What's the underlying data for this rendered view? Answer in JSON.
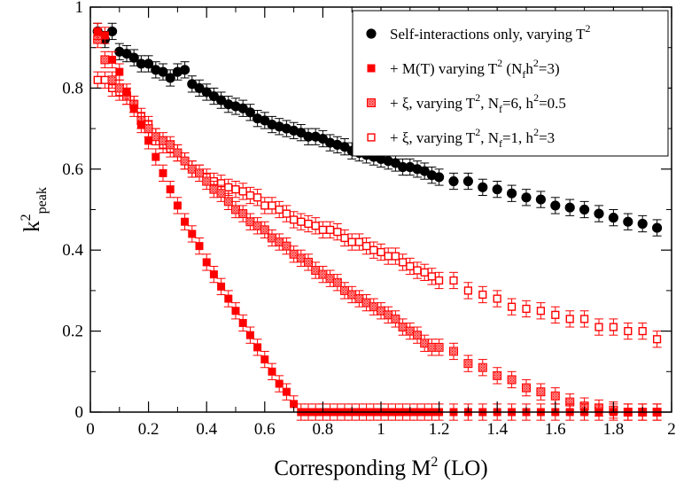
{
  "chart_data": {
    "type": "scatter",
    "xlabel": "Corresponding M",
    "xlabel_sup": "2",
    "xlabel_suffix": " (LO)",
    "ylabel": "k",
    "ylabel_sup": "2",
    "ylabel_sub": "peak",
    "xlim": [
      0,
      2
    ],
    "ylim": [
      0,
      1
    ],
    "xticks": [
      "0",
      "0.2",
      "0.4",
      "0.6",
      "0.8",
      "1",
      "1.2",
      "1.4",
      "1.6",
      "1.8",
      "2"
    ],
    "yticks": [
      "0",
      "0.2",
      "0.4",
      "0.6",
      "0.8",
      "1"
    ],
    "grid": false,
    "legend_position": "top-right",
    "series": [
      {
        "name": "Self-interactions only, varying T²",
        "legend": {
          "text": "Self-interactions only, varying T",
          "sup": "2"
        },
        "marker": "circle-filled",
        "color": "#000000",
        "x": [
          0.025,
          0.05,
          0.075,
          0.1,
          0.125,
          0.15,
          0.175,
          0.2,
          0.225,
          0.25,
          0.275,
          0.3,
          0.325,
          0.35,
          0.375,
          0.4,
          0.425,
          0.45,
          0.475,
          0.5,
          0.525,
          0.55,
          0.575,
          0.6,
          0.625,
          0.65,
          0.675,
          0.7,
          0.725,
          0.75,
          0.775,
          0.8,
          0.825,
          0.85,
          0.875,
          0.9,
          0.925,
          0.95,
          0.975,
          1.0,
          1.025,
          1.05,
          1.075,
          1.1,
          1.125,
          1.15,
          1.175,
          1.2,
          1.25,
          1.3,
          1.35,
          1.4,
          1.45,
          1.5,
          1.55,
          1.6,
          1.65,
          1.7,
          1.75,
          1.8,
          1.85,
          1.9,
          1.95
        ],
        "y": [
          0.94,
          0.92,
          0.94,
          0.89,
          0.885,
          0.875,
          0.86,
          0.86,
          0.845,
          0.84,
          0.825,
          0.84,
          0.845,
          0.81,
          0.8,
          0.79,
          0.78,
          0.77,
          0.76,
          0.755,
          0.75,
          0.74,
          0.725,
          0.72,
          0.71,
          0.705,
          0.7,
          0.695,
          0.69,
          0.68,
          0.68,
          0.675,
          0.665,
          0.66,
          0.655,
          0.645,
          0.64,
          0.635,
          0.63,
          0.625,
          0.62,
          0.615,
          0.605,
          0.605,
          0.6,
          0.595,
          0.585,
          0.58,
          0.57,
          0.57,
          0.555,
          0.55,
          0.54,
          0.53,
          0.525,
          0.51,
          0.505,
          0.5,
          0.49,
          0.48,
          0.47,
          0.465,
          0.455
        ],
        "err": 0.02
      },
      {
        "name": "+ M(T) varying T² (Nfh²=3)",
        "legend": {
          "text": "+ M(T) varying T",
          "sup": "2",
          "text2": " (N",
          "sub": "f",
          "text3": "h",
          "sup2": "2",
          "text4": "=3)"
        },
        "marker": "square-filled",
        "color": "#ff0000",
        "x": [
          0.025,
          0.05,
          0.075,
          0.1,
          0.125,
          0.15,
          0.175,
          0.2,
          0.225,
          0.25,
          0.275,
          0.3,
          0.325,
          0.35,
          0.375,
          0.4,
          0.425,
          0.45,
          0.475,
          0.5,
          0.525,
          0.55,
          0.575,
          0.6,
          0.625,
          0.65,
          0.675,
          0.7,
          0.725,
          0.75,
          0.775,
          0.8,
          0.825,
          0.85,
          0.875,
          0.9,
          0.925,
          0.95,
          0.975,
          1.0,
          1.025,
          1.05,
          1.075,
          1.1,
          1.125,
          1.15,
          1.175,
          1.2,
          1.25,
          1.3,
          1.35,
          1.4,
          1.45,
          1.5,
          1.55,
          1.6,
          1.65,
          1.7,
          1.75,
          1.8,
          1.85,
          1.9,
          1.95
        ],
        "y": [
          0.94,
          0.85,
          0.81,
          0.77,
          0.72,
          0.69,
          0.65,
          0.59,
          0.55,
          0.51,
          0.47,
          0.44,
          0.4,
          0.37,
          0.34,
          0.31,
          0.27,
          0.24,
          0.21,
          0.18,
          0.15,
          0.12,
          0.09,
          0.06,
          0.03,
          0.01,
          0.0,
          0.0,
          0.0,
          0.0,
          0.0,
          0.0,
          0.0,
          0.0,
          0.0,
          0.0,
          0.0,
          0.0,
          0.0,
          0.0,
          0.0,
          0.0,
          0.0,
          0.0,
          0.0,
          0.0,
          0.0,
          0.0,
          0.0,
          0.0,
          0.0,
          0.0,
          0.0,
          0.0,
          0.0,
          0.0,
          0.0,
          0.0,
          0.0,
          0.0,
          0.0,
          0.0,
          0.0
        ],
        "x_override": [
          0.025,
          0.05,
          0.075,
          0.1,
          0.125,
          0.15,
          0.175,
          0.2,
          0.225,
          0.25,
          0.275,
          0.3,
          0.325,
          0.35,
          0.375,
          0.4,
          0.425,
          0.45,
          0.475,
          0.5,
          0.525,
          0.55,
          0.575,
          0.6,
          0.625,
          0.65,
          0.675,
          0.7,
          0.725,
          0.75,
          0.775,
          0.8,
          0.825,
          0.85,
          0.875,
          0.9,
          0.925,
          0.95,
          0.975,
          1.0,
          1.025,
          1.05,
          1.075,
          1.1,
          1.125,
          1.15,
          1.175,
          1.2,
          1.25,
          1.3,
          1.35,
          1.4,
          1.45,
          1.5,
          1.55,
          1.6,
          1.65,
          1.7,
          1.75,
          1.8,
          1.85,
          1.9,
          1.95
        ],
        "y_override": [
          0.94,
          0.93,
          0.87,
          0.84,
          0.79,
          0.75,
          0.71,
          0.67,
          0.63,
          0.59,
          0.55,
          0.51,
          0.47,
          0.44,
          0.41,
          0.37,
          0.34,
          0.31,
          0.28,
          0.25,
          0.22,
          0.19,
          0.16,
          0.13,
          0.1,
          0.07,
          0.05,
          0.02,
          0.0,
          0.0,
          0.0,
          0.0,
          0.0,
          0.0,
          0.0,
          0.0,
          0.0,
          0.0,
          0.0,
          0.0,
          0.0,
          0.0,
          0.0,
          0.0,
          0.0,
          0.0,
          0.0,
          0.0,
          0.0,
          0.0,
          0.0,
          0.0,
          0.0,
          0.0,
          0.0,
          0.0,
          0.0,
          0.0,
          0.0,
          0.0,
          0.0,
          0.0,
          0.0
        ],
        "err": 0.02
      },
      {
        "name": "+ ξ, varying T², Nf=6, h²=0.5",
        "legend": {
          "text": "+ ξ, varying T",
          "sup": "2",
          "text2": ", N",
          "sub": "f",
          "text3": "=6, h",
          "sup2": "2",
          "text4": "=0.5"
        },
        "marker": "square-hatched",
        "color": "#ff0000",
        "x": [
          0.025,
          0.05,
          0.075,
          0.1,
          0.125,
          0.15,
          0.175,
          0.2,
          0.225,
          0.25,
          0.275,
          0.3,
          0.325,
          0.35,
          0.375,
          0.4,
          0.425,
          0.45,
          0.475,
          0.5,
          0.525,
          0.55,
          0.575,
          0.6,
          0.625,
          0.65,
          0.675,
          0.7,
          0.725,
          0.75,
          0.775,
          0.8,
          0.825,
          0.85,
          0.875,
          0.9,
          0.925,
          0.95,
          0.975,
          1.0,
          1.025,
          1.05,
          1.075,
          1.1,
          1.125,
          1.15,
          1.175,
          1.2,
          1.25,
          1.3,
          1.35,
          1.4,
          1.45,
          1.5,
          1.55,
          1.6,
          1.65,
          1.7,
          1.75,
          1.8,
          1.85,
          1.9,
          1.95
        ],
        "y": [
          0.92,
          0.87,
          0.82,
          0.8,
          0.78,
          0.76,
          0.72,
          0.7,
          0.68,
          0.67,
          0.66,
          0.64,
          0.62,
          0.6,
          0.59,
          0.57,
          0.55,
          0.54,
          0.52,
          0.5,
          0.49,
          0.47,
          0.46,
          0.45,
          0.43,
          0.42,
          0.41,
          0.39,
          0.38,
          0.37,
          0.35,
          0.34,
          0.33,
          0.32,
          0.3,
          0.29,
          0.28,
          0.27,
          0.26,
          0.25,
          0.24,
          0.23,
          0.21,
          0.2,
          0.19,
          0.17,
          0.16,
          0.16,
          0.15,
          0.12,
          0.11,
          0.09,
          0.08,
          0.06,
          0.05,
          0.04,
          0.025,
          0.015,
          0.01,
          0.005,
          0.0,
          0.0,
          0.0
        ],
        "err": 0.02
      },
      {
        "name": "+ ξ, varying T², Nf=1, h²=3",
        "legend": {
          "text": "+ ξ, varying T",
          "sup": "2",
          "text2": ", N",
          "sub": "f",
          "text3": "=1, h",
          "sup2": "2",
          "text4": "=3"
        },
        "marker": "square-open",
        "color": "#ff0000",
        "x": [
          0.025,
          0.05,
          0.075,
          0.1,
          0.125,
          0.15,
          0.175,
          0.2,
          0.225,
          0.25,
          0.275,
          0.3,
          0.325,
          0.35,
          0.375,
          0.4,
          0.425,
          0.45,
          0.475,
          0.5,
          0.525,
          0.55,
          0.575,
          0.6,
          0.625,
          0.65,
          0.675,
          0.7,
          0.725,
          0.75,
          0.775,
          0.8,
          0.825,
          0.85,
          0.875,
          0.9,
          0.925,
          0.95,
          0.975,
          1.0,
          1.025,
          1.05,
          1.075,
          1.1,
          1.125,
          1.15,
          1.175,
          1.2,
          1.25,
          1.3,
          1.35,
          1.4,
          1.45,
          1.5,
          1.55,
          1.6,
          1.65,
          1.7,
          1.75,
          1.8,
          1.85,
          1.9,
          1.95
        ],
        "y": [
          0.82,
          0.82,
          0.8,
          0.79,
          0.78,
          0.76,
          0.73,
          0.71,
          0.68,
          0.66,
          0.65,
          0.64,
          0.62,
          0.6,
          0.59,
          0.58,
          0.57,
          0.565,
          0.555,
          0.55,
          0.545,
          0.535,
          0.53,
          0.51,
          0.51,
          0.5,
          0.49,
          0.475,
          0.47,
          0.465,
          0.46,
          0.45,
          0.45,
          0.445,
          0.43,
          0.42,
          0.42,
          0.41,
          0.4,
          0.395,
          0.385,
          0.385,
          0.37,
          0.36,
          0.35,
          0.345,
          0.335,
          0.325,
          0.325,
          0.3,
          0.29,
          0.28,
          0.26,
          0.255,
          0.25,
          0.24,
          0.23,
          0.23,
          0.21,
          0.21,
          0.2,
          0.2,
          0.18
        ],
        "err": 0.02
      }
    ]
  }
}
